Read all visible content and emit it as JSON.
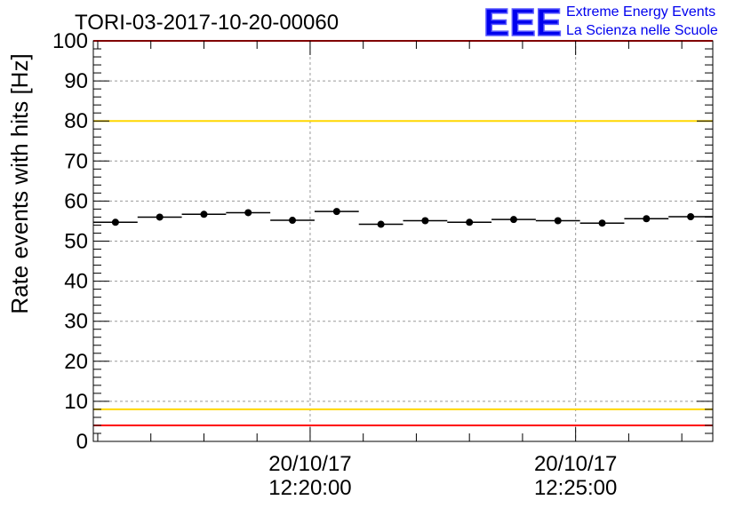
{
  "chart_data": {
    "type": "scatter",
    "title": "TORI-03-2017-10-20-00060",
    "ylabel": "Rate events with hits [Hz]",
    "xlabel": "",
    "ylim": [
      0,
      100
    ],
    "y_ticks": [
      "0",
      "10",
      "20",
      "30",
      "40",
      "50",
      "60",
      "70",
      "80",
      "90",
      "100"
    ],
    "x_tick_labels": [
      {
        "date": "20/10/17",
        "time": "12:20:00"
      },
      {
        "date": "20/10/17",
        "time": "12:25:00"
      }
    ],
    "grid": true,
    "bin_width_s": 50,
    "x_start": "12:15:55",
    "points": [
      {
        "x": "12:16:20",
        "y": 54.7
      },
      {
        "x": "12:17:10",
        "y": 56.0
      },
      {
        "x": "12:18:00",
        "y": 56.7
      },
      {
        "x": "12:18:50",
        "y": 57.1
      },
      {
        "x": "12:19:40",
        "y": 55.2
      },
      {
        "x": "12:20:30",
        "y": 57.4
      },
      {
        "x": "12:21:20",
        "y": 54.2
      },
      {
        "x": "12:22:10",
        "y": 55.1
      },
      {
        "x": "12:23:00",
        "y": 54.7
      },
      {
        "x": "12:23:50",
        "y": 55.4
      },
      {
        "x": "12:24:40",
        "y": 55.1
      },
      {
        "x": "12:25:30",
        "y": 54.5
      },
      {
        "x": "12:26:20",
        "y": 55.6
      },
      {
        "x": "12:27:10",
        "y": 56.1
      }
    ],
    "reference_lines": [
      {
        "y": 100,
        "color": "#ff0000"
      },
      {
        "y": 80,
        "color": "#ffd700"
      },
      {
        "y": 8,
        "color": "#ffd700"
      },
      {
        "y": 4,
        "color": "#ff0000"
      }
    ]
  },
  "logo": {
    "mark": "EEE",
    "line1": "Extreme Energy Events",
    "line2": "La Scienza nelle Scuole",
    "color": "#0000ee"
  }
}
